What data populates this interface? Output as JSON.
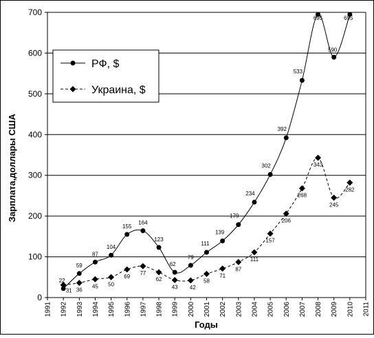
{
  "chart_data": {
    "type": "line",
    "xlabel": "Годы",
    "ylabel": "Зарплата,доллары США",
    "ylim": [
      0,
      700
    ],
    "y_ticks": [
      "0",
      "100",
      "200",
      "300",
      "400",
      "500",
      "600",
      "700"
    ],
    "xlim": [
      1991,
      2011
    ],
    "x_ticks": [
      "1991",
      "1992",
      "1993",
      "1994",
      "1995",
      "1996",
      "1997",
      "1998",
      "1999",
      "2000",
      "2001",
      "2002",
      "2003",
      "2004",
      "2005",
      "2006",
      "2007",
      "2008",
      "2009",
      "2010",
      "2011"
    ],
    "grid": "horizontal",
    "legend_position": "top-left",
    "x": [
      1992,
      1993,
      1994,
      1995,
      1996,
      1997,
      1998,
      1999,
      2000,
      2001,
      2002,
      2003,
      2004,
      2005,
      2006,
      2007,
      2008,
      2009,
      2010
    ],
    "series": [
      {
        "name": "РФ, $",
        "marker": "circle",
        "line_style": "solid",
        "values": [
          22,
          59,
          87,
          104,
          155,
          164,
          123,
          62,
          79,
          111,
          139,
          179,
          234,
          302,
          392,
          533,
          695,
          590,
          695
        ]
      },
      {
        "name": "Украина, $",
        "marker": "diamond",
        "line_style": "dashed",
        "values": [
          31,
          36,
          45,
          50,
          69,
          77,
          62,
          43,
          42,
          58,
          71,
          87,
          111,
          157,
          206,
          268,
          343,
          245,
          282
        ]
      }
    ]
  }
}
